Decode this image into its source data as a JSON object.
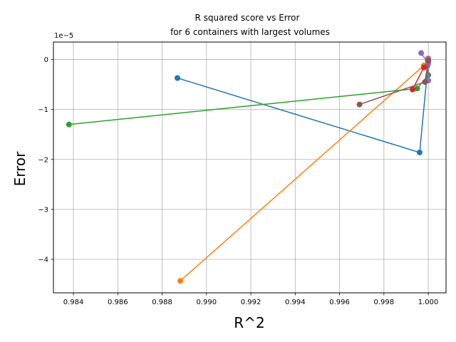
{
  "chart_data": {
    "type": "line",
    "title_line1": "R squared score vs Error",
    "title_line2": "for 6 containers with largest volumes",
    "xlabel": "R^2",
    "ylabel": "Error",
    "exponent_label": "1e−5",
    "xlim": [
      0.9831,
      1.0008
    ],
    "ylim": [
      -4.67,
      0.35
    ],
    "y_scale_factor": "1e-5",
    "grid": true,
    "x_ticks": [
      "0.984",
      "0.986",
      "0.988",
      "0.990",
      "0.992",
      "0.994",
      "0.996",
      "0.998",
      "1.000"
    ],
    "y_ticks": [
      "0",
      "−1",
      "−2",
      "−3",
      "−4"
    ],
    "x_tick_values": [
      0.984,
      0.986,
      0.988,
      0.99,
      0.992,
      0.994,
      0.996,
      0.998,
      1.0
    ],
    "y_tick_values": [
      0,
      -1,
      -2,
      -3,
      -4
    ],
    "series": [
      {
        "color": "#1f77b4",
        "x": [
          0.98869,
          0.99961,
          1.0
        ],
        "y": [
          -0.37,
          -1.86,
          -0.05
        ]
      },
      {
        "color": "#ff7f0e",
        "x": [
          0.98882,
          0.9998,
          1.0
        ],
        "y": [
          -4.43,
          -0.12,
          -0.02
        ]
      },
      {
        "color": "#2ca02c",
        "x": [
          0.9838,
          0.9995,
          1.0,
          0.99996
        ],
        "y": [
          -1.3,
          -0.58,
          -0.31,
          -0.13
        ]
      },
      {
        "color": "#d62728",
        "x": [
          0.99929,
          0.9998,
          0.99998
        ],
        "y": [
          -0.6,
          -0.16,
          -0.03
        ]
      },
      {
        "color": "#9467bd",
        "x": [
          0.99968,
          1.0,
          1.0,
          1.0
        ],
        "y": [
          0.13,
          -0.08,
          -0.42,
          0.02
        ]
      },
      {
        "color": "#8c564b",
        "x": [
          0.9969,
          0.99985,
          1.0
        ],
        "y": [
          -0.9,
          -0.45,
          -0.02
        ]
      }
    ]
  }
}
